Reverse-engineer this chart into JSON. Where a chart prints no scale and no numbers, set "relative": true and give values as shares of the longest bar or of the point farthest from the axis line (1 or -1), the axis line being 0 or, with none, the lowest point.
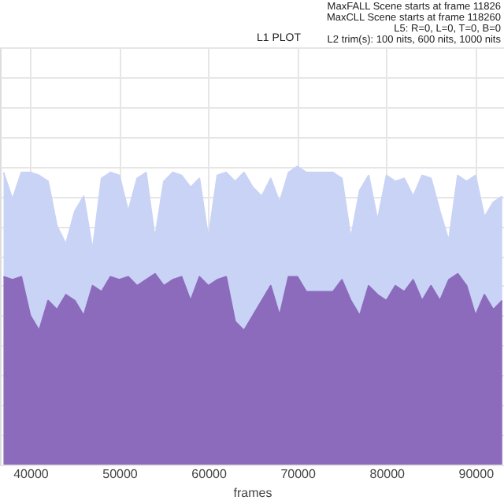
{
  "chart_data": {
    "type": "area",
    "title": "L1 PLOT",
    "xlabel": "frames",
    "relative": true,
    "grid": true,
    "annotations": [
      "MaxFALL Scene starts at frame 11826",
      "MaxCLL Scene starts at frame 118260",
      "L5: R=0, L=0, T=0, B=0",
      "L2 trim(s): 100 nits, 600 nits, 1000 nits"
    ],
    "xlim": [
      36600,
      93200
    ],
    "xticks": [
      40000,
      50000,
      60000,
      70000,
      80000,
      90000
    ],
    "x": [
      37000,
      38000,
      39000,
      40000,
      41000,
      42000,
      43000,
      44000,
      45000,
      46000,
      47000,
      48000,
      49000,
      50000,
      51000,
      52000,
      53000,
      54000,
      55000,
      56000,
      57000,
      58000,
      59000,
      60000,
      61000,
      62000,
      63000,
      64000,
      65000,
      66000,
      67000,
      68000,
      69000,
      70000,
      71000,
      72000,
      73000,
      74000,
      75000,
      76000,
      77000,
      78000,
      79000,
      80000,
      81000,
      82000,
      83000,
      84000,
      85000,
      86000,
      87000,
      88000,
      89000,
      90000,
      91000,
      92000,
      93000
    ],
    "series": [
      {
        "color": "#c9d3f5",
        "values": [
          0.98,
          0.89,
          0.98,
          0.98,
          0.97,
          0.95,
          0.8,
          0.74,
          0.85,
          0.9,
          0.72,
          0.96,
          0.98,
          0.97,
          0.85,
          0.96,
          0.98,
          0.76,
          0.95,
          0.98,
          0.97,
          0.93,
          0.96,
          0.76,
          0.97,
          0.98,
          0.95,
          0.98,
          0.93,
          0.9,
          0.96,
          0.88,
          0.98,
          1,
          0.98,
          0.98,
          0.98,
          0.98,
          0.96,
          0.76,
          0.92,
          0.97,
          0.82,
          0.97,
          0.95,
          0.96,
          0.9,
          0.97,
          0.96,
          0.85,
          0.75,
          0.97,
          0.95,
          0.97,
          0.83,
          0.88,
          0.9
        ]
      },
      {
        "color": "#8c6bbd",
        "values": [
          0.63,
          0.62,
          0.63,
          0.5,
          0.45,
          0.55,
          0.52,
          0.57,
          0.55,
          0.5,
          0.6,
          0.58,
          0.63,
          0.62,
          0.63,
          0.6,
          0.62,
          0.64,
          0.6,
          0.62,
          0.63,
          0.55,
          0.63,
          0.6,
          0.62,
          0.63,
          0.48,
          0.45,
          0.5,
          0.55,
          0.6,
          0.5,
          0.63,
          0.63,
          0.58,
          0.58,
          0.58,
          0.58,
          0.62,
          0.55,
          0.5,
          0.6,
          0.57,
          0.55,
          0.6,
          0.58,
          0.62,
          0.55,
          0.6,
          0.55,
          0.62,
          0.64,
          0.6,
          0.5,
          0.57,
          0.52,
          0.55
        ]
      }
    ]
  }
}
